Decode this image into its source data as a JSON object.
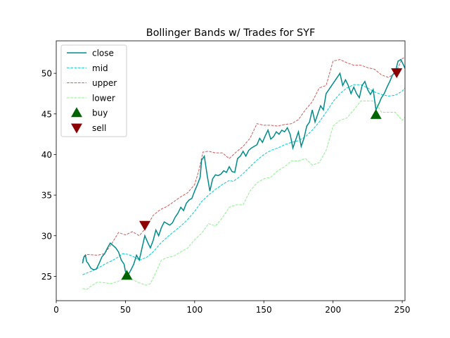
{
  "chart_data": {
    "type": "line",
    "title": "Bollinger Bands w/ Trades for SYF",
    "xlabel": "",
    "ylabel": "",
    "xlim": [
      0,
      252
    ],
    "ylim": [
      22,
      54
    ],
    "x_ticks": [
      0,
      50,
      100,
      150,
      200,
      250
    ],
    "y_ticks": [
      25,
      30,
      35,
      40,
      45,
      50
    ],
    "grid": false,
    "legend_position": "upper left",
    "colors": {
      "close": "#008B8B",
      "mid": "#00CED1",
      "upper": "#CD5C5C",
      "lower": "#90EE90",
      "buy": "#006400",
      "sell": "#8B0000"
    },
    "series": [
      {
        "name": "close",
        "style": "solid",
        "points": [
          [
            19,
            26.6
          ],
          [
            20,
            27.4
          ],
          [
            21,
            27.6
          ],
          [
            22,
            26.8
          ],
          [
            23,
            26.6
          ],
          [
            25,
            26.0
          ],
          [
            27,
            25.8
          ],
          [
            29,
            25.9
          ],
          [
            31,
            26.6
          ],
          [
            33,
            27.4
          ],
          [
            35,
            27.8
          ],
          [
            37,
            28.5
          ],
          [
            39,
            29.1
          ],
          [
            41,
            28.8
          ],
          [
            43,
            28.5
          ],
          [
            45,
            28.0
          ],
          [
            47,
            27.0
          ],
          [
            49,
            26.5
          ],
          [
            50,
            25.6
          ],
          [
            52,
            25.2
          ],
          [
            54,
            25.8
          ],
          [
            56,
            26.5
          ],
          [
            58,
            27.6
          ],
          [
            60,
            27.0
          ],
          [
            62,
            28.5
          ],
          [
            64,
            30.0
          ],
          [
            66,
            29.2
          ],
          [
            68,
            28.5
          ],
          [
            70,
            29.4
          ],
          [
            72,
            30.7
          ],
          [
            74,
            30.0
          ],
          [
            76,
            31.0
          ],
          [
            78,
            31.7
          ],
          [
            80,
            31.5
          ],
          [
            82,
            31.3
          ],
          [
            84,
            31.6
          ],
          [
            86,
            32.3
          ],
          [
            88,
            32.8
          ],
          [
            90,
            33.5
          ],
          [
            92,
            33.1
          ],
          [
            94,
            34.0
          ],
          [
            96,
            34.4
          ],
          [
            98,
            34.6
          ],
          [
            100,
            35.5
          ],
          [
            102,
            36.3
          ],
          [
            104,
            37.2
          ],
          [
            105,
            39.3
          ],
          [
            107,
            39.8
          ],
          [
            109,
            37.5
          ],
          [
            111,
            35.5
          ],
          [
            113,
            37.0
          ],
          [
            115,
            37.5
          ],
          [
            117,
            37.4
          ],
          [
            119,
            37.6
          ],
          [
            121,
            38.0
          ],
          [
            123,
            37.8
          ],
          [
            125,
            38.5
          ],
          [
            127,
            37.9
          ],
          [
            129,
            37.8
          ],
          [
            131,
            39.5
          ],
          [
            133,
            39.8
          ],
          [
            135,
            40.4
          ],
          [
            137,
            39.8
          ],
          [
            139,
            40.5
          ],
          [
            141,
            40.8
          ],
          [
            143,
            41.0
          ],
          [
            145,
            41.2
          ],
          [
            147,
            42.0
          ],
          [
            149,
            41.5
          ],
          [
            151,
            42.3
          ],
          [
            153,
            43.0
          ],
          [
            155,
            41.9
          ],
          [
            157,
            42.2
          ],
          [
            159,
            42.8
          ],
          [
            161,
            42.5
          ],
          [
            163,
            43.0
          ],
          [
            165,
            42.8
          ],
          [
            167,
            43.3
          ],
          [
            169,
            42.5
          ],
          [
            171,
            40.8
          ],
          [
            173,
            41.8
          ],
          [
            175,
            42.8
          ],
          [
            177,
            41.0
          ],
          [
            179,
            42.0
          ],
          [
            181,
            43.5
          ],
          [
            183,
            44.0
          ],
          [
            185,
            45.5
          ],
          [
            187,
            44.0
          ],
          [
            189,
            45.0
          ],
          [
            191,
            46.0
          ],
          [
            193,
            45.5
          ],
          [
            195,
            47.5
          ],
          [
            197,
            48.0
          ],
          [
            199,
            48.5
          ],
          [
            201,
            49.0
          ],
          [
            203,
            49.5
          ],
          [
            205,
            50.0
          ],
          [
            207,
            48.5
          ],
          [
            209,
            49.2
          ],
          [
            211,
            48.5
          ],
          [
            213,
            47.5
          ],
          [
            215,
            48.3
          ],
          [
            217,
            47.5
          ],
          [
            219,
            47.0
          ],
          [
            221,
            48.5
          ],
          [
            223,
            49.0
          ],
          [
            225,
            48.0
          ],
          [
            227,
            47.4
          ],
          [
            229,
            48.0
          ],
          [
            231,
            45.5
          ],
          [
            233,
            46.2
          ],
          [
            235,
            47.0
          ],
          [
            237,
            47.5
          ],
          [
            239,
            48.3
          ],
          [
            241,
            49.0
          ],
          [
            243,
            49.8
          ],
          [
            245,
            50.2
          ],
          [
            247,
            51.5
          ],
          [
            249,
            51.7
          ],
          [
            251,
            51.0
          ],
          [
            252,
            50.6
          ]
        ]
      },
      {
        "name": "mid",
        "style": "dashed",
        "points": [
          [
            19,
            25.2
          ],
          [
            25,
            25.6
          ],
          [
            30,
            26.0
          ],
          [
            35,
            26.5
          ],
          [
            40,
            26.9
          ],
          [
            45,
            27.4
          ],
          [
            48,
            27.8
          ],
          [
            52,
            27.7
          ],
          [
            56,
            27.4
          ],
          [
            60,
            27.0
          ],
          [
            65,
            27.3
          ],
          [
            70,
            28.0
          ],
          [
            75,
            29.0
          ],
          [
            80,
            29.8
          ],
          [
            85,
            30.5
          ],
          [
            90,
            31.2
          ],
          [
            95,
            32.0
          ],
          [
            100,
            33.0
          ],
          [
            105,
            34.2
          ],
          [
            110,
            35.0
          ],
          [
            115,
            35.7
          ],
          [
            120,
            36.3
          ],
          [
            125,
            36.8
          ],
          [
            128,
            36.7
          ],
          [
            132,
            37.2
          ],
          [
            136,
            37.8
          ],
          [
            140,
            38.5
          ],
          [
            145,
            39.3
          ],
          [
            150,
            40.0
          ],
          [
            155,
            40.5
          ],
          [
            160,
            40.8
          ],
          [
            165,
            41.2
          ],
          [
            170,
            41.5
          ],
          [
            175,
            41.7
          ],
          [
            180,
            42.2
          ],
          [
            185,
            43.0
          ],
          [
            190,
            44.0
          ],
          [
            195,
            45.2
          ],
          [
            200,
            46.5
          ],
          [
            205,
            47.5
          ],
          [
            210,
            48.2
          ],
          [
            215,
            48.6
          ],
          [
            220,
            48.6
          ],
          [
            225,
            48.2
          ],
          [
            230,
            47.7
          ],
          [
            235,
            47.4
          ],
          [
            240,
            47.2
          ],
          [
            245,
            47.3
          ],
          [
            250,
            47.8
          ],
          [
            252,
            48.2
          ]
        ]
      },
      {
        "name": "upper",
        "style": "dashed",
        "points": [
          [
            19,
            27.0
          ],
          [
            22,
            27.7
          ],
          [
            30,
            27.6
          ],
          [
            35,
            27.8
          ],
          [
            40,
            29.0
          ],
          [
            45,
            30.4
          ],
          [
            50,
            30.1
          ],
          [
            55,
            30.5
          ],
          [
            60,
            30.0
          ],
          [
            65,
            31.0
          ],
          [
            70,
            32.5
          ],
          [
            75,
            33.2
          ],
          [
            80,
            33.6
          ],
          [
            85,
            34.2
          ],
          [
            90,
            34.8
          ],
          [
            95,
            35.3
          ],
          [
            100,
            36.3
          ],
          [
            103,
            38.0
          ],
          [
            106,
            40.3
          ],
          [
            110,
            40.4
          ],
          [
            115,
            40.2
          ],
          [
            120,
            40.2
          ],
          [
            125,
            39.5
          ],
          [
            130,
            40.3
          ],
          [
            135,
            41.0
          ],
          [
            140,
            42.0
          ],
          [
            145,
            43.8
          ],
          [
            150,
            43.6
          ],
          [
            155,
            43.6
          ],
          [
            160,
            43.5
          ],
          [
            165,
            43.7
          ],
          [
            170,
            43.8
          ],
          [
            175,
            44.3
          ],
          [
            180,
            45.5
          ],
          [
            185,
            46.5
          ],
          [
            190,
            48.2
          ],
          [
            195,
            48.5
          ],
          [
            200,
            51.5
          ],
          [
            205,
            51.7
          ],
          [
            210,
            51.3
          ],
          [
            215,
            51.0
          ],
          [
            220,
            51.0
          ],
          [
            225,
            50.7
          ],
          [
            230,
            50.5
          ],
          [
            235,
            49.8
          ],
          [
            240,
            49.5
          ],
          [
            245,
            50.0
          ],
          [
            250,
            51.8
          ],
          [
            252,
            52.0
          ]
        ]
      },
      {
        "name": "lower",
        "style": "dashed",
        "points": [
          [
            19,
            23.5
          ],
          [
            22,
            23.4
          ],
          [
            27,
            24.0
          ],
          [
            30,
            24.3
          ],
          [
            35,
            24.2
          ],
          [
            40,
            24.1
          ],
          [
            45,
            24.4
          ],
          [
            50,
            24.8
          ],
          [
            55,
            24.6
          ],
          [
            60,
            24.2
          ],
          [
            65,
            23.9
          ],
          [
            68,
            24.1
          ],
          [
            72,
            25.5
          ],
          [
            76,
            27.0
          ],
          [
            80,
            27.3
          ],
          [
            85,
            27.5
          ],
          [
            90,
            28.0
          ],
          [
            95,
            28.5
          ],
          [
            100,
            29.5
          ],
          [
            105,
            30.3
          ],
          [
            110,
            31.5
          ],
          [
            115,
            31.2
          ],
          [
            120,
            32.2
          ],
          [
            125,
            33.5
          ],
          [
            130,
            33.8
          ],
          [
            135,
            33.8
          ],
          [
            140,
            35.5
          ],
          [
            145,
            36.5
          ],
          [
            150,
            37.0
          ],
          [
            155,
            37.2
          ],
          [
            160,
            38.0
          ],
          [
            165,
            38.5
          ],
          [
            170,
            39.2
          ],
          [
            175,
            39.2
          ],
          [
            180,
            39.5
          ],
          [
            185,
            38.7
          ],
          [
            190,
            39.0
          ],
          [
            195,
            40.5
          ],
          [
            200,
            43.5
          ],
          [
            205,
            44.2
          ],
          [
            210,
            44.5
          ],
          [
            215,
            45.5
          ],
          [
            220,
            46.6
          ],
          [
            225,
            46.6
          ],
          [
            230,
            46.6
          ],
          [
            235,
            45.2
          ],
          [
            240,
            45.2
          ],
          [
            245,
            45.2
          ],
          [
            250,
            44.2
          ],
          [
            252,
            44.6
          ]
        ]
      }
    ],
    "trades": [
      {
        "name": "buy",
        "marker": "triangle-up",
        "points": [
          [
            51,
            25.1
          ],
          [
            231,
            44.9
          ]
        ]
      },
      {
        "name": "sell",
        "marker": "triangle-down",
        "points": [
          [
            64,
            31.3
          ],
          [
            246,
            50.1
          ]
        ]
      }
    ]
  }
}
